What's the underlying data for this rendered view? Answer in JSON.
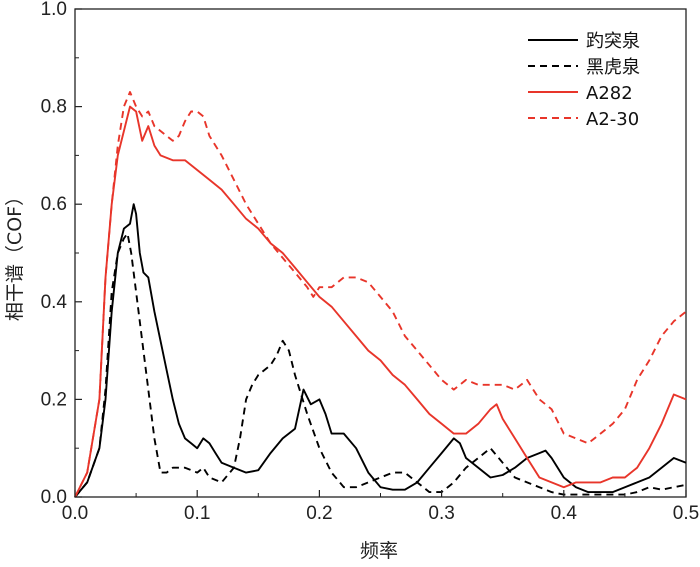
{
  "chart_data": {
    "type": "line",
    "title": "",
    "xlabel": "频率",
    "ylabel": "相干谱（COF）",
    "xlim": [
      0,
      0.5
    ],
    "ylim": [
      0,
      1.0
    ],
    "x_ticks": [
      "0.0",
      "0.1",
      "0.2",
      "0.3",
      "0.4",
      "0.5"
    ],
    "y_ticks": [
      "0.0",
      "0.2",
      "0.4",
      "0.6",
      "0.8",
      "1.0"
    ],
    "grid": false,
    "legend_position": "top-right",
    "series": [
      {
        "name": "趵突泉",
        "color": "#000000",
        "dash": "solid",
        "points": [
          [
            0.0,
            0.0
          ],
          [
            0.01,
            0.03
          ],
          [
            0.02,
            0.1
          ],
          [
            0.025,
            0.2
          ],
          [
            0.03,
            0.38
          ],
          [
            0.035,
            0.5
          ],
          [
            0.04,
            0.55
          ],
          [
            0.045,
            0.56
          ],
          [
            0.048,
            0.6
          ],
          [
            0.05,
            0.58
          ],
          [
            0.053,
            0.5
          ],
          [
            0.056,
            0.46
          ],
          [
            0.06,
            0.45
          ],
          [
            0.065,
            0.38
          ],
          [
            0.07,
            0.32
          ],
          [
            0.075,
            0.26
          ],
          [
            0.08,
            0.2
          ],
          [
            0.085,
            0.15
          ],
          [
            0.09,
            0.12
          ],
          [
            0.095,
            0.11
          ],
          [
            0.1,
            0.1
          ],
          [
            0.105,
            0.12
          ],
          [
            0.11,
            0.11
          ],
          [
            0.115,
            0.09
          ],
          [
            0.12,
            0.07
          ],
          [
            0.13,
            0.06
          ],
          [
            0.14,
            0.05
          ],
          [
            0.15,
            0.055
          ],
          [
            0.16,
            0.09
          ],
          [
            0.17,
            0.12
          ],
          [
            0.18,
            0.14
          ],
          [
            0.187,
            0.22
          ],
          [
            0.193,
            0.19
          ],
          [
            0.2,
            0.2
          ],
          [
            0.205,
            0.17
          ],
          [
            0.21,
            0.13
          ],
          [
            0.22,
            0.13
          ],
          [
            0.23,
            0.1
          ],
          [
            0.24,
            0.05
          ],
          [
            0.25,
            0.02
          ],
          [
            0.26,
            0.015
          ],
          [
            0.27,
            0.015
          ],
          [
            0.28,
            0.03
          ],
          [
            0.29,
            0.06
          ],
          [
            0.3,
            0.09
          ],
          [
            0.31,
            0.12
          ],
          [
            0.315,
            0.11
          ],
          [
            0.32,
            0.08
          ],
          [
            0.33,
            0.06
          ],
          [
            0.34,
            0.04
          ],
          [
            0.35,
            0.045
          ],
          [
            0.36,
            0.06
          ],
          [
            0.37,
            0.08
          ],
          [
            0.38,
            0.09
          ],
          [
            0.385,
            0.095
          ],
          [
            0.39,
            0.08
          ],
          [
            0.4,
            0.04
          ],
          [
            0.41,
            0.02
          ],
          [
            0.42,
            0.01
          ],
          [
            0.43,
            0.01
          ],
          [
            0.44,
            0.01
          ],
          [
            0.45,
            0.02
          ],
          [
            0.46,
            0.03
          ],
          [
            0.47,
            0.04
          ],
          [
            0.48,
            0.06
          ],
          [
            0.49,
            0.08
          ],
          [
            0.5,
            0.07
          ]
        ]
      },
      {
        "name": "黑虎泉",
        "color": "#000000",
        "dash": "dashed",
        "points": [
          [
            0.0,
            0.0
          ],
          [
            0.01,
            0.03
          ],
          [
            0.02,
            0.1
          ],
          [
            0.025,
            0.22
          ],
          [
            0.03,
            0.42
          ],
          [
            0.035,
            0.5
          ],
          [
            0.04,
            0.53
          ],
          [
            0.043,
            0.54
          ],
          [
            0.046,
            0.5
          ],
          [
            0.05,
            0.42
          ],
          [
            0.055,
            0.32
          ],
          [
            0.06,
            0.22
          ],
          [
            0.065,
            0.12
          ],
          [
            0.07,
            0.05
          ],
          [
            0.075,
            0.05
          ],
          [
            0.08,
            0.06
          ],
          [
            0.09,
            0.06
          ],
          [
            0.1,
            0.05
          ],
          [
            0.105,
            0.06
          ],
          [
            0.11,
            0.04
          ],
          [
            0.12,
            0.03
          ],
          [
            0.13,
            0.06
          ],
          [
            0.135,
            0.12
          ],
          [
            0.14,
            0.2
          ],
          [
            0.145,
            0.23
          ],
          [
            0.15,
            0.25
          ],
          [
            0.16,
            0.27
          ],
          [
            0.165,
            0.29
          ],
          [
            0.17,
            0.32
          ],
          [
            0.175,
            0.3
          ],
          [
            0.18,
            0.25
          ],
          [
            0.19,
            0.17
          ],
          [
            0.2,
            0.1
          ],
          [
            0.21,
            0.05
          ],
          [
            0.22,
            0.02
          ],
          [
            0.23,
            0.02
          ],
          [
            0.24,
            0.03
          ],
          [
            0.25,
            0.04
          ],
          [
            0.26,
            0.05
          ],
          [
            0.27,
            0.05
          ],
          [
            0.28,
            0.03
          ],
          [
            0.29,
            0.01
          ],
          [
            0.3,
            0.01
          ],
          [
            0.31,
            0.03
          ],
          [
            0.32,
            0.06
          ],
          [
            0.33,
            0.08
          ],
          [
            0.34,
            0.1
          ],
          [
            0.35,
            0.07
          ],
          [
            0.36,
            0.04
          ],
          [
            0.37,
            0.03
          ],
          [
            0.38,
            0.02
          ],
          [
            0.39,
            0.01
          ],
          [
            0.4,
            0.005
          ],
          [
            0.41,
            0.005
          ],
          [
            0.42,
            0.005
          ],
          [
            0.43,
            0.005
          ],
          [
            0.44,
            0.005
          ],
          [
            0.45,
            0.005
          ],
          [
            0.46,
            0.01
          ],
          [
            0.47,
            0.02
          ],
          [
            0.48,
            0.015
          ],
          [
            0.49,
            0.02
          ],
          [
            0.5,
            0.025
          ]
        ]
      },
      {
        "name": "A282",
        "color": "#e8352a",
        "dash": "solid",
        "points": [
          [
            0.0,
            0.0
          ],
          [
            0.01,
            0.05
          ],
          [
            0.02,
            0.2
          ],
          [
            0.025,
            0.45
          ],
          [
            0.03,
            0.6
          ],
          [
            0.035,
            0.7
          ],
          [
            0.04,
            0.75
          ],
          [
            0.045,
            0.8
          ],
          [
            0.05,
            0.79
          ],
          [
            0.055,
            0.73
          ],
          [
            0.06,
            0.76
          ],
          [
            0.065,
            0.72
          ],
          [
            0.07,
            0.7
          ],
          [
            0.08,
            0.69
          ],
          [
            0.09,
            0.69
          ],
          [
            0.1,
            0.67
          ],
          [
            0.11,
            0.65
          ],
          [
            0.12,
            0.63
          ],
          [
            0.13,
            0.6
          ],
          [
            0.14,
            0.57
          ],
          [
            0.15,
            0.55
          ],
          [
            0.16,
            0.52
          ],
          [
            0.17,
            0.5
          ],
          [
            0.18,
            0.47
          ],
          [
            0.19,
            0.44
          ],
          [
            0.2,
            0.41
          ],
          [
            0.21,
            0.39
          ],
          [
            0.22,
            0.36
          ],
          [
            0.23,
            0.33
          ],
          [
            0.24,
            0.3
          ],
          [
            0.25,
            0.28
          ],
          [
            0.26,
            0.25
          ],
          [
            0.27,
            0.23
          ],
          [
            0.28,
            0.2
          ],
          [
            0.29,
            0.17
          ],
          [
            0.3,
            0.15
          ],
          [
            0.31,
            0.13
          ],
          [
            0.32,
            0.13
          ],
          [
            0.33,
            0.15
          ],
          [
            0.34,
            0.18
          ],
          [
            0.345,
            0.19
          ],
          [
            0.35,
            0.16
          ],
          [
            0.36,
            0.12
          ],
          [
            0.37,
            0.08
          ],
          [
            0.38,
            0.04
          ],
          [
            0.39,
            0.03
          ],
          [
            0.4,
            0.02
          ],
          [
            0.41,
            0.03
          ],
          [
            0.42,
            0.03
          ],
          [
            0.43,
            0.03
          ],
          [
            0.44,
            0.04
          ],
          [
            0.45,
            0.04
          ],
          [
            0.46,
            0.06
          ],
          [
            0.47,
            0.1
          ],
          [
            0.48,
            0.15
          ],
          [
            0.49,
            0.21
          ],
          [
            0.5,
            0.2
          ]
        ]
      },
      {
        "name": "A2-30",
        "color": "#e8352a",
        "dash": "dashed",
        "points": [
          [
            0.0,
            0.0
          ],
          [
            0.01,
            0.05
          ],
          [
            0.02,
            0.2
          ],
          [
            0.025,
            0.45
          ],
          [
            0.03,
            0.6
          ],
          [
            0.035,
            0.72
          ],
          [
            0.04,
            0.8
          ],
          [
            0.045,
            0.83
          ],
          [
            0.05,
            0.8
          ],
          [
            0.055,
            0.78
          ],
          [
            0.06,
            0.79
          ],
          [
            0.065,
            0.76
          ],
          [
            0.07,
            0.75
          ],
          [
            0.075,
            0.74
          ],
          [
            0.08,
            0.73
          ],
          [
            0.085,
            0.74
          ],
          [
            0.09,
            0.77
          ],
          [
            0.095,
            0.79
          ],
          [
            0.1,
            0.79
          ],
          [
            0.105,
            0.78
          ],
          [
            0.11,
            0.74
          ],
          [
            0.12,
            0.7
          ],
          [
            0.13,
            0.65
          ],
          [
            0.14,
            0.6
          ],
          [
            0.15,
            0.56
          ],
          [
            0.16,
            0.52
          ],
          [
            0.17,
            0.49
          ],
          [
            0.18,
            0.46
          ],
          [
            0.19,
            0.43
          ],
          [
            0.195,
            0.41
          ],
          [
            0.2,
            0.43
          ],
          [
            0.21,
            0.43
          ],
          [
            0.22,
            0.45
          ],
          [
            0.23,
            0.45
          ],
          [
            0.24,
            0.44
          ],
          [
            0.25,
            0.41
          ],
          [
            0.26,
            0.38
          ],
          [
            0.27,
            0.33
          ],
          [
            0.28,
            0.3
          ],
          [
            0.29,
            0.27
          ],
          [
            0.3,
            0.24
          ],
          [
            0.31,
            0.22
          ],
          [
            0.32,
            0.24
          ],
          [
            0.33,
            0.23
          ],
          [
            0.34,
            0.23
          ],
          [
            0.35,
            0.23
          ],
          [
            0.36,
            0.22
          ],
          [
            0.37,
            0.24
          ],
          [
            0.38,
            0.2
          ],
          [
            0.39,
            0.18
          ],
          [
            0.4,
            0.13
          ],
          [
            0.41,
            0.12
          ],
          [
            0.42,
            0.11
          ],
          [
            0.43,
            0.13
          ],
          [
            0.44,
            0.15
          ],
          [
            0.45,
            0.18
          ],
          [
            0.46,
            0.24
          ],
          [
            0.47,
            0.28
          ],
          [
            0.48,
            0.33
          ],
          [
            0.49,
            0.36
          ],
          [
            0.5,
            0.38
          ]
        ]
      }
    ]
  }
}
